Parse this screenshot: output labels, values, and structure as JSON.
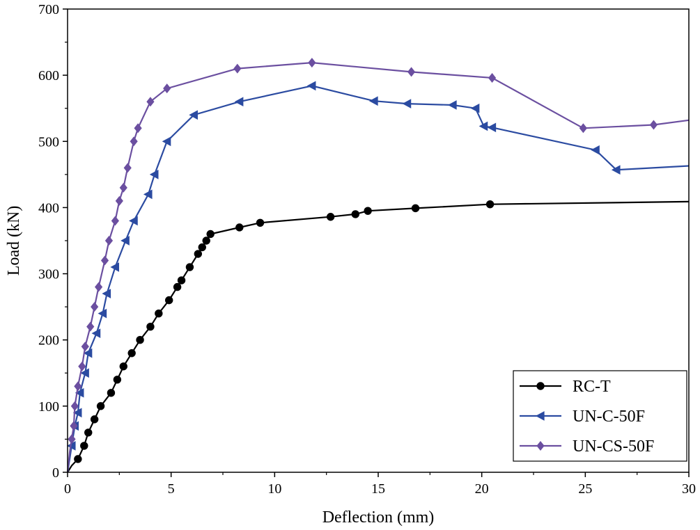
{
  "chart_data": {
    "type": "line",
    "title": "",
    "xlabel": "Deflection (mm)",
    "ylabel": "Load (kN)",
    "xlim": [
      0,
      30
    ],
    "ylim": [
      0,
      700
    ],
    "xticks": [
      0,
      5,
      10,
      15,
      20,
      25,
      30
    ],
    "yticks": [
      0,
      100,
      200,
      300,
      400,
      500,
      600,
      700
    ],
    "grid": false,
    "legend_position": "bottom-right",
    "series": [
      {
        "name": "RC-T",
        "color": "#000000",
        "marker": "circle",
        "points": [
          [
            0,
            0
          ],
          [
            0.2,
            10
          ],
          [
            0.5,
            20
          ],
          [
            0.8,
            40
          ],
          [
            1.0,
            60
          ],
          [
            1.3,
            80
          ],
          [
            1.6,
            100
          ],
          [
            2.1,
            120
          ],
          [
            2.4,
            140
          ],
          [
            2.7,
            160
          ],
          [
            3.1,
            180
          ],
          [
            3.5,
            200
          ],
          [
            4.0,
            220
          ],
          [
            4.4,
            240
          ],
          [
            4.9,
            260
          ],
          [
            5.3,
            280
          ],
          [
            5.5,
            290
          ],
          [
            5.9,
            310
          ],
          [
            6.3,
            330
          ],
          [
            6.5,
            340
          ],
          [
            6.7,
            350
          ],
          [
            6.9,
            360
          ],
          [
            8.3,
            370
          ],
          [
            9.3,
            377
          ],
          [
            12.7,
            386
          ],
          [
            13.9,
            390
          ],
          [
            14.5,
            395
          ],
          [
            16.8,
            399
          ],
          [
            20.4,
            405
          ],
          [
            30,
            409
          ]
        ],
        "marked_indices": [
          2,
          3,
          4,
          5,
          6,
          7,
          8,
          9,
          10,
          11,
          12,
          13,
          14,
          15,
          16,
          17,
          18,
          19,
          20,
          21,
          22,
          23,
          24,
          25,
          26,
          27,
          28
        ]
      },
      {
        "name": "UN-C-50F",
        "color": "#2b4ba1",
        "marker": "triangle-left",
        "points": [
          [
            0,
            0
          ],
          [
            0.1,
            20
          ],
          [
            0.2,
            40
          ],
          [
            0.35,
            70
          ],
          [
            0.5,
            90
          ],
          [
            0.6,
            120
          ],
          [
            0.85,
            150
          ],
          [
            1.0,
            180
          ],
          [
            1.4,
            210
          ],
          [
            1.7,
            240
          ],
          [
            1.9,
            270
          ],
          [
            2.3,
            310
          ],
          [
            2.8,
            350
          ],
          [
            3.2,
            380
          ],
          [
            3.9,
            420
          ],
          [
            4.2,
            450
          ],
          [
            4.8,
            500
          ],
          [
            6.1,
            540
          ],
          [
            8.3,
            560
          ],
          [
            11.8,
            584
          ],
          [
            14.8,
            561
          ],
          [
            16.4,
            557
          ],
          [
            18.6,
            555
          ],
          [
            19.7,
            550
          ],
          [
            20.1,
            523
          ],
          [
            20.5,
            521
          ],
          [
            25.5,
            487
          ],
          [
            26.5,
            457
          ],
          [
            30,
            463
          ]
        ],
        "marked_indices": [
          2,
          3,
          4,
          5,
          6,
          7,
          8,
          9,
          10,
          11,
          12,
          13,
          14,
          15,
          16,
          17,
          18,
          19,
          20,
          21,
          22,
          23,
          24,
          25,
          26,
          27
        ]
      },
      {
        "name": "UN-CS-50F",
        "color": "#6b4fa0",
        "marker": "diamond",
        "points": [
          [
            0,
            0
          ],
          [
            0.1,
            30
          ],
          [
            0.2,
            50
          ],
          [
            0.3,
            70
          ],
          [
            0.35,
            100
          ],
          [
            0.5,
            130
          ],
          [
            0.7,
            160
          ],
          [
            0.85,
            190
          ],
          [
            1.1,
            220
          ],
          [
            1.3,
            250
          ],
          [
            1.5,
            280
          ],
          [
            1.8,
            320
          ],
          [
            2.0,
            350
          ],
          [
            2.3,
            380
          ],
          [
            2.5,
            410
          ],
          [
            2.7,
            430
          ],
          [
            2.9,
            460
          ],
          [
            3.2,
            500
          ],
          [
            3.4,
            520
          ],
          [
            4.0,
            560
          ],
          [
            4.8,
            580
          ],
          [
            8.2,
            610
          ],
          [
            11.8,
            619
          ],
          [
            16.6,
            605
          ],
          [
            20.5,
            596
          ],
          [
            24.9,
            520
          ],
          [
            28.3,
            525
          ],
          [
            30,
            532
          ]
        ],
        "marked_indices": [
          2,
          3,
          4,
          5,
          6,
          7,
          8,
          9,
          10,
          11,
          12,
          13,
          14,
          15,
          16,
          17,
          18,
          19,
          20,
          21,
          22,
          23,
          24,
          25,
          26
        ]
      }
    ]
  }
}
